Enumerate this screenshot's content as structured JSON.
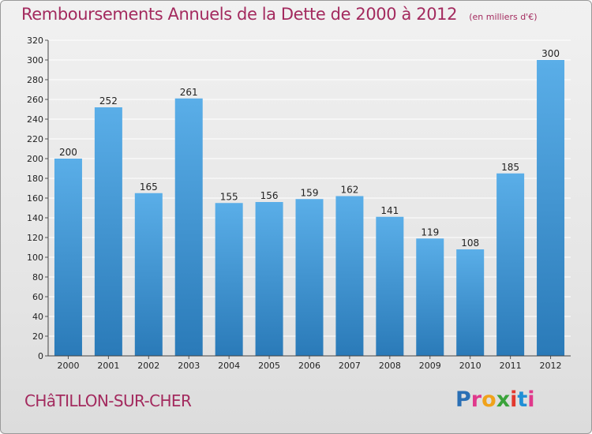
{
  "header": {
    "title": "Remboursements Annuels de la Dette de 2000 à 2012",
    "subtitle": "(en milliers d'€)"
  },
  "footer": {
    "town": "CHâTILLON-SUR-CHER",
    "logo_text": "Proxiti"
  },
  "chart_data": {
    "type": "bar",
    "title": "Remboursements Annuels de la Dette de 2000 à 2012",
    "subtitle": "(en milliers d'€)",
    "xlabel": "",
    "ylabel": "",
    "categories": [
      "2000",
      "2001",
      "2002",
      "2003",
      "2004",
      "2005",
      "2006",
      "2007",
      "2008",
      "2009",
      "2010",
      "2011",
      "2012"
    ],
    "values": [
      200,
      252,
      165,
      261,
      155,
      156,
      159,
      162,
      141,
      119,
      108,
      185,
      300
    ],
    "ylim": [
      0,
      320
    ],
    "yticks": [
      0,
      20,
      40,
      60,
      80,
      100,
      120,
      140,
      160,
      180,
      200,
      220,
      240,
      260,
      280,
      300,
      320
    ],
    "grid": true,
    "legend": "none"
  },
  "colors": {
    "bar_top": "#5aaee8",
    "bar_bottom": "#2a7ab8",
    "title": "#a32a5e",
    "grid": "#ffffff",
    "axis": "#444444"
  }
}
